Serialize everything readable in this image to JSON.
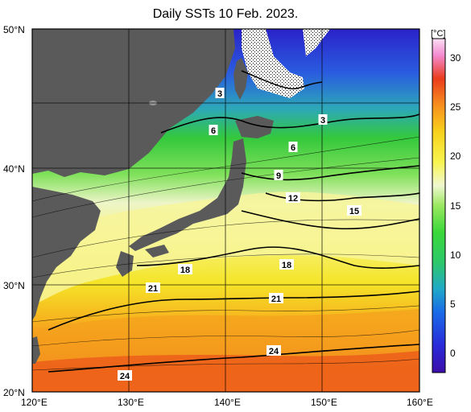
{
  "title": "Daily SSTs 10 Feb. 2023.",
  "lat_labels": [
    "50°N",
    "40°N",
    "30°N",
    "20°N"
  ],
  "lon_labels": [
    "120°E",
    "130°E",
    "140°E",
    "150°E",
    "160°E"
  ],
  "colorbar": {
    "unit": "[°C]",
    "ticks": [
      "30",
      "25",
      "20",
      "15",
      "10",
      "5",
      "0"
    ],
    "min": -2,
    "max": 32
  },
  "contour_labels": [
    "3",
    "3",
    "6",
    "6",
    "9",
    "12",
    "15",
    "18",
    "18",
    "21",
    "21",
    "24",
    "24"
  ],
  "colors": {
    "land": "#5a5a5a",
    "grid": "#000000",
    "very_cold": "#3a1bd0",
    "cold_blue": "#1a5ce0",
    "teal": "#1fb0b0",
    "green": "#2ec84a",
    "light_green": "#8ee36a",
    "pale": "#eef7c8",
    "yellow": "#f5f03a",
    "orange": "#f79a1e",
    "red": "#e8381a"
  }
}
